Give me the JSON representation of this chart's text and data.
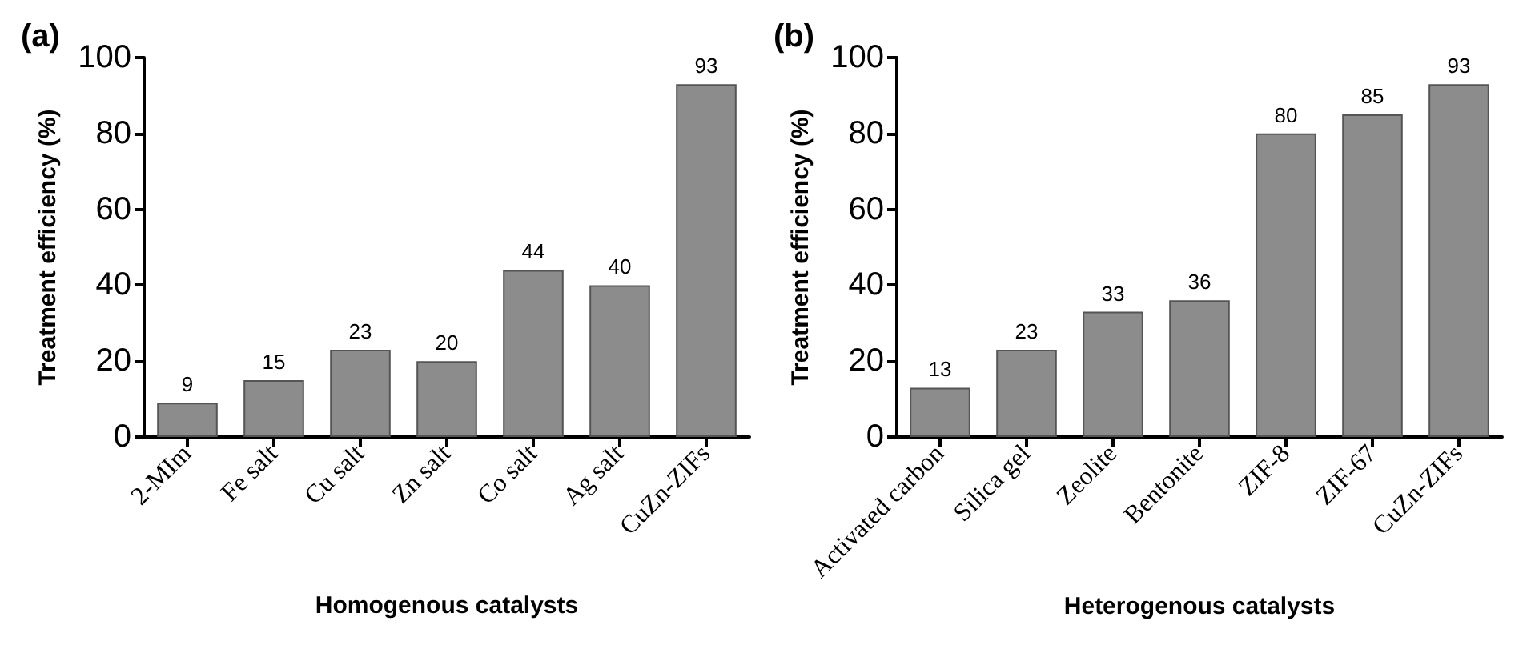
{
  "chart_data": [
    {
      "type": "bar",
      "title": "(a)",
      "xlabel": "Homogenous catalysts",
      "ylabel": "Treatment efficiency (%)",
      "categories": [
        "2-MIm",
        "Fe salt",
        "Cu salt",
        "Zn salt",
        "Co salt",
        "Ag salt",
        "CuZn-ZIFs"
      ],
      "values": [
        9,
        15,
        23,
        20,
        44,
        40,
        93
      ],
      "color": "#8c8c8c",
      "ylim": [
        0,
        100
      ],
      "yticks": [
        0,
        20,
        40,
        60,
        80,
        100
      ],
      "data_labels": true
    },
    {
      "type": "bar",
      "title": "(b)",
      "xlabel": "Heterogenous catalysts",
      "ylabel": "Treatment efficiency (%)",
      "categories": [
        "Activated carbon",
        "Silica gel",
        "Zeolite",
        "Bentonite",
        "ZIF-8",
        "ZIF-67",
        "CuZn-ZIFs"
      ],
      "values": [
        13,
        23,
        33,
        36,
        80,
        85,
        93
      ],
      "color": "#8c8c8c",
      "ylim": [
        0,
        100
      ],
      "yticks": [
        0,
        20,
        40,
        60,
        80,
        100
      ],
      "data_labels": true
    }
  ]
}
